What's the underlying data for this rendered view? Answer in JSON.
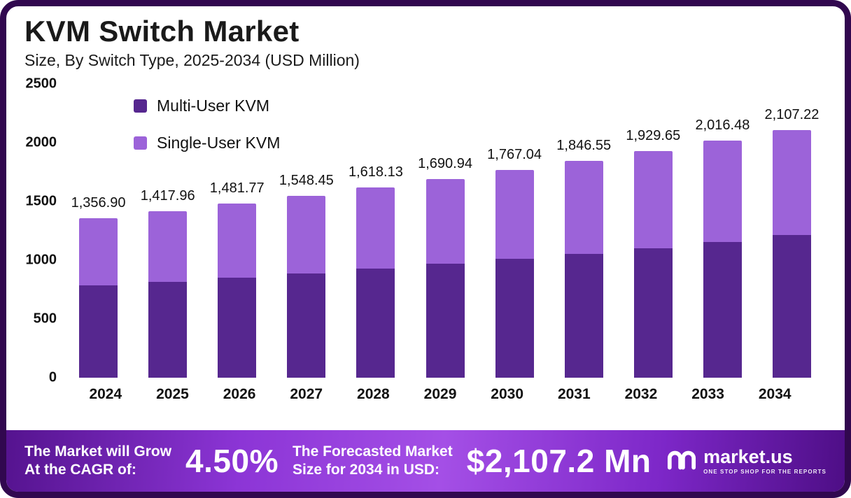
{
  "chart_data": {
    "type": "bar",
    "stacked": true,
    "title": "KVM Switch Market",
    "subtitle": "Size, By Switch Type, 2025-2034 (USD Million)",
    "categories": [
      "2024",
      "2025",
      "2026",
      "2027",
      "2028",
      "2029",
      "2030",
      "2031",
      "2032",
      "2033",
      "2034"
    ],
    "series": [
      {
        "name": "Multi-User KVM",
        "color": "#56278f",
        "values": [
          785,
          815,
          852,
          888,
          928,
          968,
          1012,
          1052,
          1102,
          1158,
          1212
        ]
      },
      {
        "name": "Single-User KVM",
        "color": "#9c63d9",
        "values": [
          571.9,
          602.96,
          629.77,
          660.45,
          690.13,
          722.94,
          755.04,
          794.55,
          827.65,
          858.48,
          895.22
        ]
      }
    ],
    "totals": [
      1356.9,
      1417.96,
      1481.77,
      1548.45,
      1618.13,
      1690.94,
      1767.04,
      1846.55,
      1929.65,
      2016.48,
      2107.22
    ],
    "total_labels": [
      "1,356.90",
      "1,417.96",
      "1,481.77",
      "1,548.45",
      "1,618.13",
      "1,690.94",
      "1,767.04",
      "1,846.55",
      "1,929.65",
      "2,016.48",
      "2,107.22"
    ],
    "ylim": [
      0,
      2500
    ],
    "yticks": [
      0,
      500,
      1000,
      1500,
      2000,
      2500
    ],
    "grid": false,
    "legend_position": "top-left"
  },
  "footer": {
    "cagr_label_line1": "The Market will Grow",
    "cagr_label_line2": "At the CAGR of:",
    "cagr_value": "4.50%",
    "forecast_label_line1": "The Forecasted Market",
    "forecast_label_line2": "Size for 2034 in USD:",
    "forecast_value": "$2,107.2 Mn",
    "brand": {
      "name": "market.us",
      "tagline": "ONE STOP SHOP FOR THE REPORTS"
    }
  }
}
